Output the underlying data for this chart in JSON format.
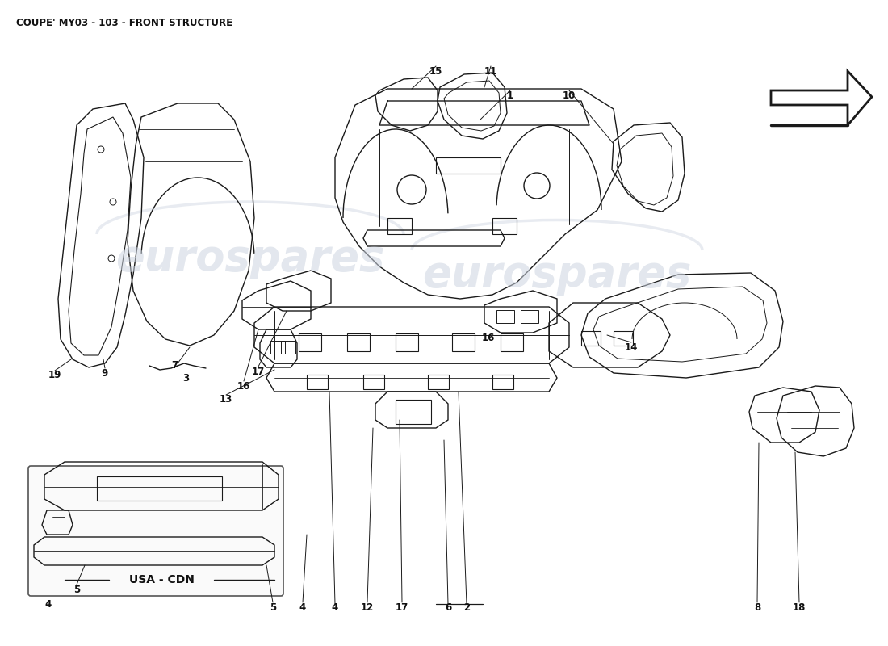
{
  "title": "COUPE' MY03 - 103 - FRONT STRUCTURE",
  "title_fontsize": 8.5,
  "background_color": "#ffffff",
  "line_color": "#1a1a1a",
  "label_color": "#111111",
  "label_fontsize": 8.5,
  "watermark_text1": "eurospares",
  "watermark_text2": "eurospares",
  "watermark_color": "#ccd4e0",
  "usa_cdn_label": "USA - CDN",
  "lw": 1.0
}
